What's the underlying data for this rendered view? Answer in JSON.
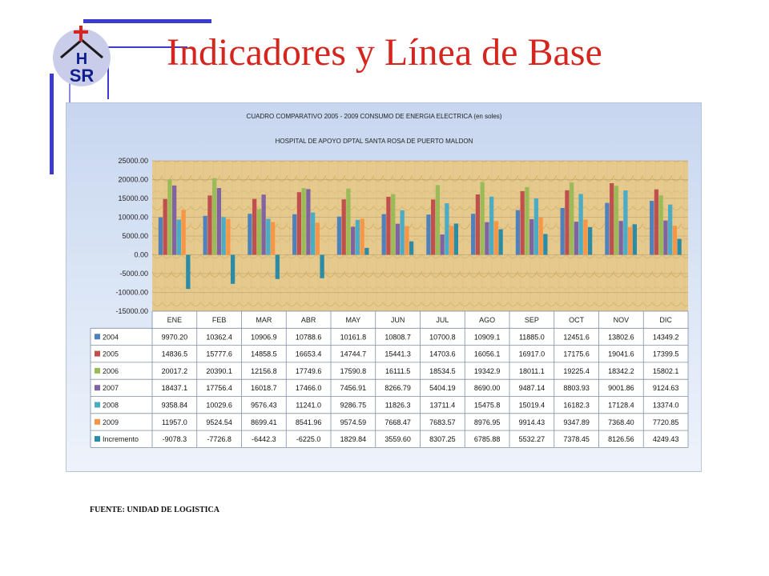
{
  "page": {
    "title": "Indicadores y Línea de Base",
    "footer": "FUENTE: UNIDAD DE LOGISTICA",
    "logo_text_top": "H",
    "logo_text_bottom": "SR",
    "accent_color": "#3b3bd0",
    "title_color": "#d4261f"
  },
  "chart_data": {
    "type": "bar",
    "title": "CUADRO COMPARATIVO 2005 - 2009   CONSUMO  DE ENERGIA ELECTRICA (en soles)",
    "subtitle": "HOSPITAL DE APOYO DPTAL SANTA ROSA DE PUERTO MALDON",
    "categories": [
      "ENE",
      "FEB",
      "MAR",
      "ABR",
      "MAY",
      "JUN",
      "JUL",
      "AGO",
      "SEP",
      "OCT",
      "NOV",
      "DIC"
    ],
    "ylim": [
      -15000,
      25000
    ],
    "yticks": [
      "25000.00",
      "20000.00",
      "15000.00",
      "10000.00",
      "5000.00",
      "0.00",
      "-5000.00",
      "-10000.00",
      "-15000.00"
    ],
    "grid": true,
    "legend": "table",
    "series": [
      {
        "name": "2004",
        "color": "#4f81bd",
        "values": [
          9970.2,
          10362.4,
          10906.9,
          10788.6,
          10161.8,
          10808.7,
          10700.8,
          10909.1,
          11885.0,
          12451.6,
          13802.6,
          14349.2
        ],
        "labels": [
          "9970.20",
          "10362.4",
          "10906.9",
          "10788.6",
          "10161.8",
          "10808.7",
          "10700.8",
          "10909.1",
          "11885.0",
          "12451.6",
          "13802.6",
          "14349.2"
        ]
      },
      {
        "name": "2005",
        "color": "#c0504d",
        "values": [
          14836.5,
          15777.6,
          14858.5,
          16653.4,
          14744.7,
          15441.3,
          14703.6,
          16056.1,
          16917.0,
          17175.6,
          19041.6,
          17399.5
        ],
        "labels": [
          "14836.5",
          "15777.6",
          "14858.5",
          "16653.4",
          "14744.7",
          "15441.3",
          "14703.6",
          "16056.1",
          "16917.0",
          "17175.6",
          "19041.6",
          "17399.5"
        ]
      },
      {
        "name": "2006",
        "color": "#9bbb59",
        "values": [
          20017.2,
          20390.1,
          12156.8,
          17749.6,
          17590.8,
          16111.5,
          18534.5,
          19342.9,
          18011.1,
          19225.4,
          18342.2,
          15802.1
        ],
        "labels": [
          "20017.2",
          "20390.1",
          "12156.8",
          "17749.6",
          "17590.8",
          "16111.5",
          "18534.5",
          "19342.9",
          "18011.1",
          "19225.4",
          "18342.2",
          "15802.1"
        ]
      },
      {
        "name": "2007",
        "color": "#8064a2",
        "values": [
          18437.1,
          17756.4,
          16018.7,
          17466.0,
          7456.91,
          8266.79,
          5404.19,
          8690.0,
          9487.14,
          8803.93,
          9001.86,
          9124.63
        ],
        "labels": [
          "18437.1",
          "17756.4",
          "16018.7",
          "17466.0",
          "7456.91",
          "8266.79",
          "5404.19",
          "8690.00",
          "9487.14",
          "8803.93",
          "9001.86",
          "9124.63"
        ]
      },
      {
        "name": "2008",
        "color": "#4bacc6",
        "values": [
          9358.84,
          10029.6,
          9576.43,
          11241.0,
          9286.75,
          11826.3,
          13711.4,
          15475.8,
          15019.4,
          16182.3,
          17128.4,
          13374.0
        ],
        "labels": [
          "9358.84",
          "10029.6",
          "9576.43",
          "11241.0",
          "9286.75",
          "11826.3",
          "13711.4",
          "15475.8",
          "15019.4",
          "16182.3",
          "17128.4",
          "13374.0"
        ]
      },
      {
        "name": "2009",
        "color": "#f79646",
        "values": [
          11957.0,
          9524.54,
          8699.41,
          8541.96,
          9574.59,
          7668.47,
          7683.57,
          8976.95,
          9914.43,
          9347.89,
          7368.4,
          7720.85
        ],
        "labels": [
          "11957.0",
          "9524.54",
          "8699.41",
          "8541.96",
          "9574.59",
          "7668.47",
          "7683.57",
          "8976.95",
          "9914.43",
          "9347.89",
          "7368.40",
          "7720.85"
        ]
      },
      {
        "name": "Incremento",
        "color": "#2c8ca6",
        "values": [
          -9078.3,
          -7726.8,
          -6442.3,
          -6225.0,
          1829.84,
          3559.6,
          8307.25,
          6785.88,
          5532.27,
          7378.45,
          8126.56,
          4249.43
        ],
        "labels": [
          "-9078.3",
          "-7726.8",
          "-6442.3",
          "-6225.0",
          "1829.84",
          "3559.60",
          "8307.25",
          "6785.88",
          "5532.27",
          "7378.45",
          "8126.56",
          "4249.43"
        ]
      }
    ]
  }
}
